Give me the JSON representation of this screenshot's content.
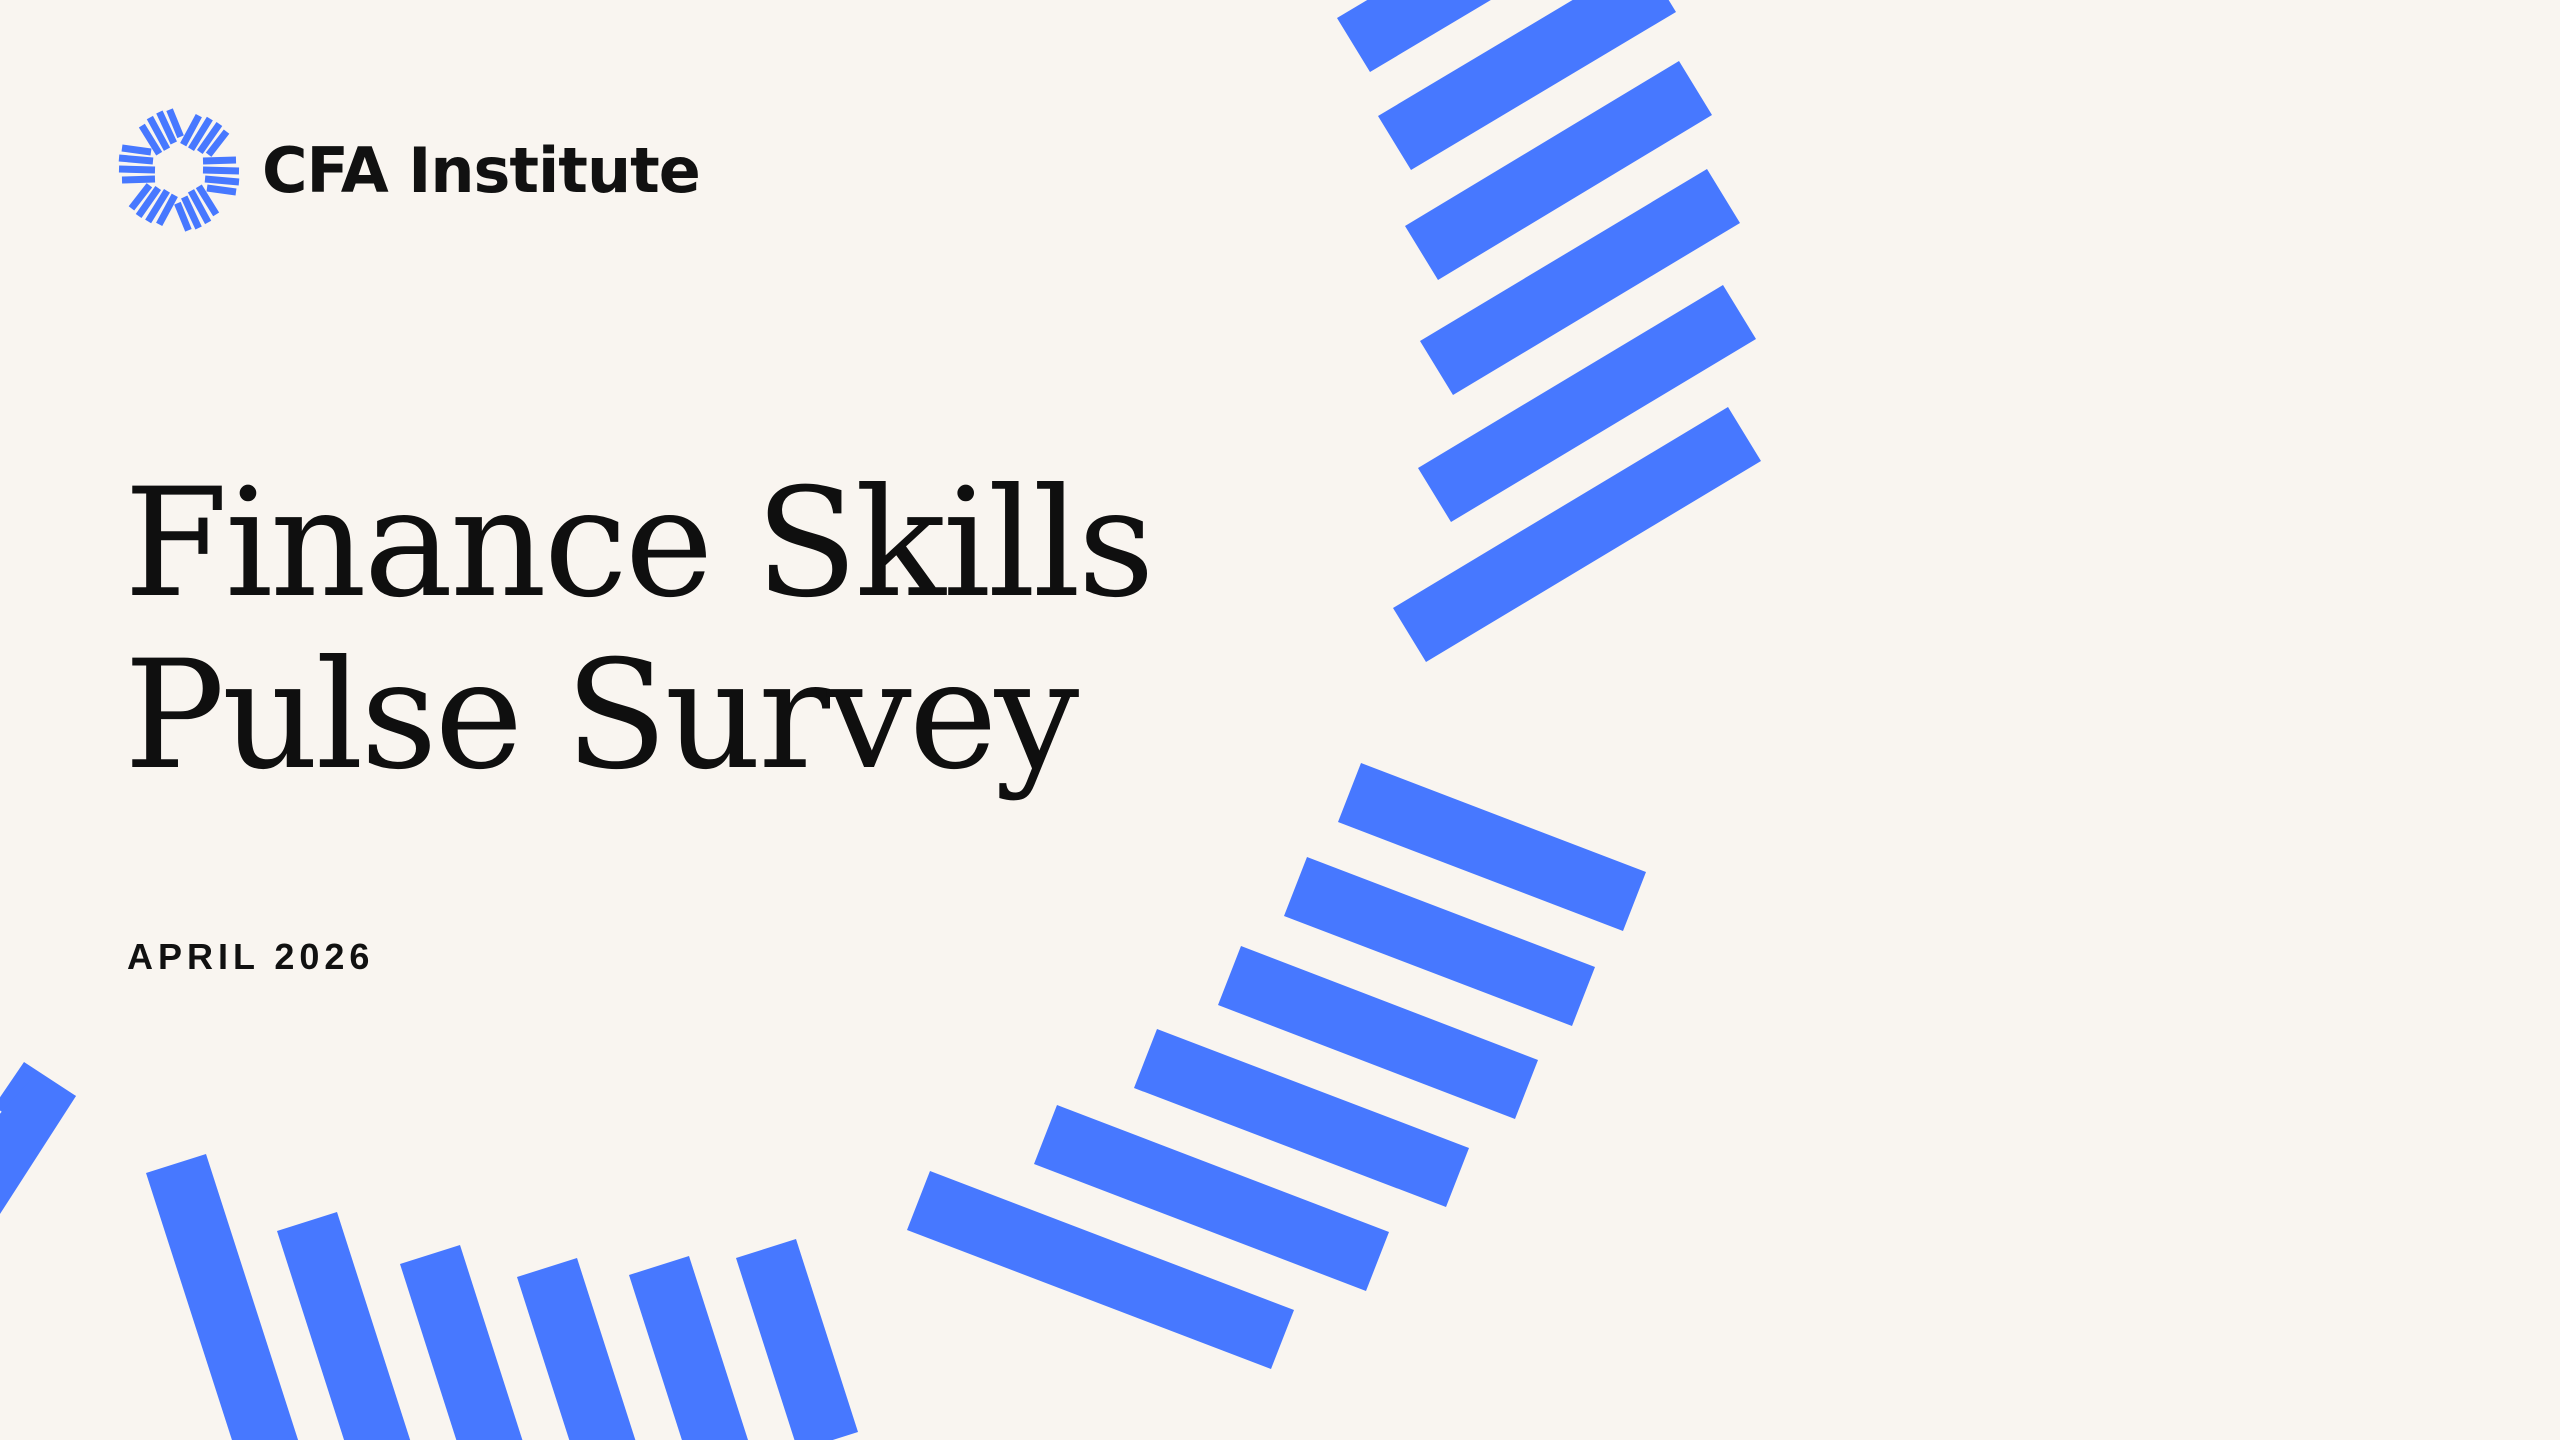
{
  "brand": {
    "logo_icon": "cfa-starburst-icon",
    "name": "CFA Institute",
    "accent_color": "#4778FF"
  },
  "title": {
    "line1": "Finance Skills",
    "line2": "Pulse Survey"
  },
  "date": "APRIL 2026",
  "colors": {
    "background": "#F9F5F0",
    "text": "#111111",
    "stripes": "#4778FF"
  }
}
